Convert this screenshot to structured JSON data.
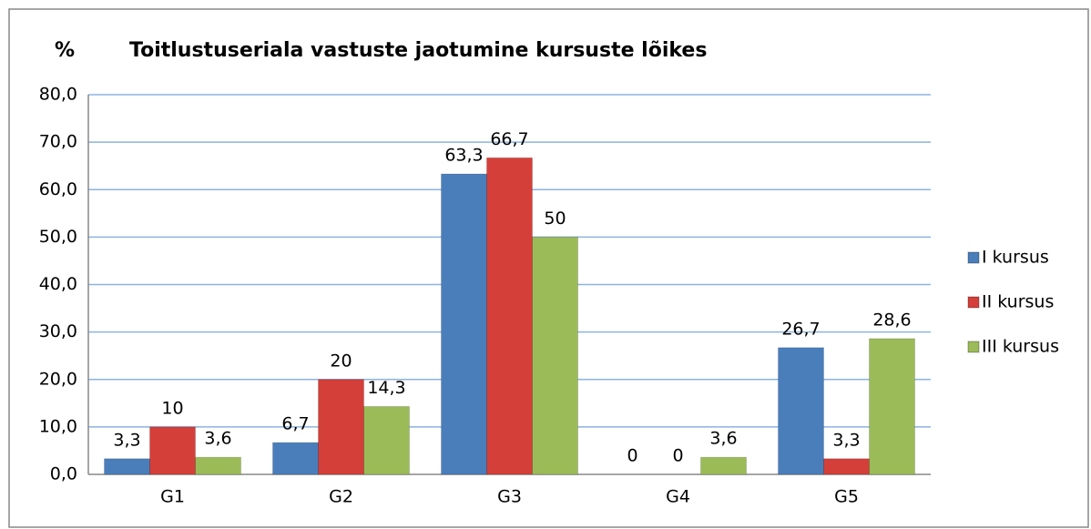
{
  "chart_data": {
    "type": "bar",
    "title": "Toitlustuseriala vastuste jaotumine kursuste lõikes",
    "y_label": "%",
    "categories": [
      "G1",
      "G2",
      "G3",
      "G4",
      "G5"
    ],
    "series": [
      {
        "name": "I kursus",
        "color": "#4a7ebb",
        "values": [
          3.3,
          6.7,
          63.3,
          0,
          26.7
        ],
        "value_labels": [
          "3,3",
          "6,7",
          "63,3",
          "0",
          "26,7"
        ]
      },
      {
        "name": "II kursus",
        "color": "#d43f3a",
        "values": [
          10,
          20,
          66.7,
          0,
          3.3
        ],
        "value_labels": [
          "10",
          "20",
          "66,7",
          "0",
          "3,3"
        ]
      },
      {
        "name": "III kursus",
        "color": "#9bbb59",
        "values": [
          3.6,
          14.3,
          50,
          3.6,
          28.6
        ],
        "value_labels": [
          "3,6",
          "14,3",
          "50",
          "3,6",
          "28,6"
        ]
      }
    ],
    "ylim": [
      0,
      80
    ],
    "yticks": [
      {
        "value": 0,
        "label": "0,0"
      },
      {
        "value": 10,
        "label": "10,0"
      },
      {
        "value": 20,
        "label": "20,0"
      },
      {
        "value": 30,
        "label": "30,0"
      },
      {
        "value": 40,
        "label": "40,0"
      },
      {
        "value": 50,
        "label": "50,0"
      },
      {
        "value": 60,
        "label": "60,0"
      },
      {
        "value": 70,
        "label": "70,0"
      },
      {
        "value": 80,
        "label": "80,0"
      }
    ],
    "grid": true,
    "legend": "right"
  }
}
